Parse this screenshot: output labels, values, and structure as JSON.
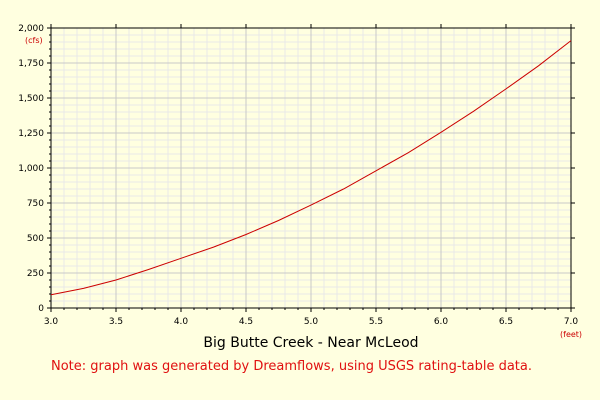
{
  "chart_data": {
    "type": "line",
    "title": "Big Butte Creek - Near McLeod",
    "xlabel": "(feet)",
    "ylabel": "(cfs)",
    "xlim": [
      3.0,
      7.0
    ],
    "ylim": [
      0,
      2000
    ],
    "x_ticks": [
      "3.0",
      "3.5",
      "4.0",
      "4.5",
      "5.0",
      "5.5",
      "6.0",
      "6.5",
      "7.0"
    ],
    "y_ticks": [
      "0",
      "250",
      "500",
      "750",
      "1,000",
      "1,250",
      "1,500",
      "1,750",
      "2,000"
    ],
    "grid": true,
    "series": [
      {
        "x": [
          3.0,
          3.25,
          3.5,
          3.75,
          4.0,
          4.25,
          4.5,
          4.75,
          5.0,
          5.25,
          5.5,
          5.75,
          6.0,
          6.25,
          6.5,
          6.75,
          7.0
        ],
        "y": [
          95,
          140,
          200,
          275,
          355,
          435,
          525,
          625,
          735,
          850,
          980,
          1110,
          1255,
          1405,
          1565,
          1730,
          1910
        ]
      }
    ],
    "colors": {
      "line": "#cc0000",
      "background": "#ffffe0",
      "grid_major": "#c8c8c8",
      "grid_minor": "#e8e8e8"
    }
  },
  "note": "Note: graph was generated by Dreamflows, using USGS rating-table data."
}
